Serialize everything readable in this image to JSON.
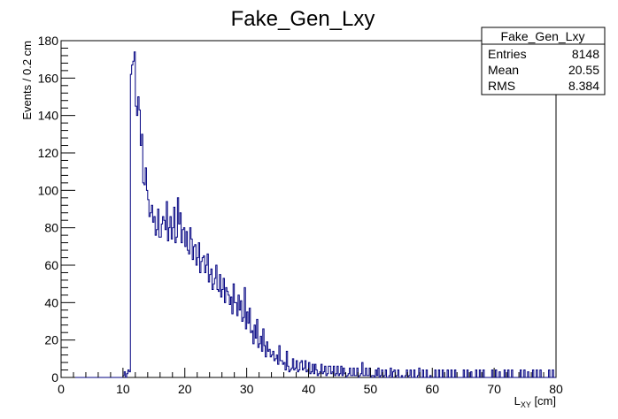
{
  "chart_data": {
    "type": "histogram",
    "title": "Fake_Gen_Lxy",
    "xlabel_main": "L",
    "xlabel_sub": "XY",
    "xlabel_unit": " [cm]",
    "ylabel": "Events / 0.2 cm",
    "xlim": [
      0,
      80
    ],
    "ylim": [
      0,
      180
    ],
    "xticks": [
      "0",
      "10",
      "20",
      "30",
      "40",
      "50",
      "60",
      "70",
      "80"
    ],
    "yticks": [
      "0",
      "20",
      "40",
      "60",
      "80",
      "100",
      "120",
      "140",
      "160",
      "180"
    ],
    "grid": false,
    "line_color": "#000080",
    "bin_width": 0.2,
    "stats": {
      "name": "Fake_Gen_Lxy",
      "entries_label": "Entries",
      "entries_value": "8148",
      "mean_label": "Mean",
      "mean_value": "20.55",
      "rms_label": "RMS",
      "rms_value": "8.384"
    },
    "profile_points": [
      [
        9.8,
        0
      ],
      [
        10.0,
        1
      ],
      [
        10.2,
        3
      ],
      [
        10.4,
        0
      ],
      [
        10.6,
        2
      ],
      [
        10.8,
        4
      ],
      [
        11.0,
        3
      ],
      [
        11.2,
        173
      ],
      [
        11.4,
        170
      ],
      [
        11.6,
        165
      ],
      [
        11.8,
        163
      ],
      [
        12.0,
        150
      ],
      [
        12.2,
        140
      ],
      [
        12.4,
        145
      ],
      [
        12.6,
        130
      ],
      [
        13.0,
        118
      ],
      [
        13.4,
        105
      ],
      [
        13.8,
        90
      ],
      [
        14.2,
        84
      ],
      [
        14.6,
        82
      ],
      [
        15.0,
        83
      ],
      [
        15.4,
        80
      ],
      [
        15.8,
        82
      ],
      [
        16.2,
        79
      ],
      [
        16.6,
        78
      ],
      [
        17.0,
        77
      ],
      [
        17.4,
        80
      ],
      [
        17.8,
        81
      ],
      [
        18.2,
        82
      ],
      [
        18.6,
        78
      ],
      [
        19.0,
        75
      ],
      [
        19.4,
        74
      ],
      [
        19.8,
        72
      ],
      [
        20.2,
        70
      ],
      [
        20.6,
        68
      ],
      [
        21.0,
        67
      ],
      [
        21.4,
        66
      ],
      [
        21.8,
        65
      ],
      [
        22.2,
        63
      ],
      [
        22.6,
        61
      ],
      [
        23.0,
        60
      ],
      [
        23.4,
        58
      ],
      [
        23.8,
        55
      ],
      [
        24.2,
        53
      ],
      [
        24.6,
        51
      ],
      [
        25.0,
        49
      ],
      [
        25.4,
        48
      ],
      [
        25.8,
        46
      ],
      [
        26.2,
        45
      ],
      [
        26.6,
        43
      ],
      [
        27.0,
        41
      ],
      [
        27.4,
        40
      ],
      [
        27.8,
        39
      ],
      [
        28.2,
        37
      ],
      [
        28.6,
        34
      ],
      [
        29.0,
        31
      ],
      [
        29.4,
        29
      ],
      [
        29.8,
        27
      ],
      [
        30.2,
        25
      ],
      [
        30.6,
        23
      ],
      [
        31.0,
        21
      ],
      [
        31.4,
        19
      ],
      [
        31.8,
        17
      ],
      [
        32.2,
        16
      ],
      [
        32.6,
        14
      ],
      [
        33.0,
        13
      ],
      [
        33.4,
        12
      ],
      [
        33.8,
        11
      ],
      [
        34.2,
        10
      ],
      [
        34.6,
        9
      ],
      [
        35.0,
        8
      ],
      [
        35.6,
        7
      ],
      [
        36.2,
        6
      ],
      [
        37.0,
        5
      ],
      [
        38.0,
        4.5
      ],
      [
        39.0,
        4
      ],
      [
        40.0,
        3.5
      ],
      [
        41.0,
        3
      ],
      [
        42.0,
        2.7
      ],
      [
        43.0,
        2.3
      ],
      [
        44.0,
        2
      ],
      [
        45.0,
        1.8
      ],
      [
        46.0,
        1.6
      ],
      [
        47.0,
        1.4
      ],
      [
        48.0,
        1.3
      ],
      [
        49.0,
        1.2
      ],
      [
        50.0,
        1.0
      ],
      [
        52.0,
        0.8
      ],
      [
        54.0,
        0.6
      ],
      [
        56.0,
        0.5
      ],
      [
        58.0,
        0.35
      ],
      [
        60.0,
        0.2
      ],
      [
        62.0,
        0.1
      ],
      [
        64.0,
        0
      ]
    ],
    "spikes": [
      [
        12.2,
        140
      ],
      [
        12.4,
        150
      ],
      [
        12.6,
        143
      ],
      [
        13.0,
        130
      ],
      [
        13.6,
        112
      ],
      [
        13.8,
        100
      ],
      [
        14.0,
        95
      ],
      [
        14.4,
        88
      ],
      [
        14.6,
        92
      ],
      [
        15.0,
        86
      ],
      [
        15.6,
        90
      ],
      [
        16.0,
        75
      ],
      [
        16.6,
        84
      ],
      [
        17.0,
        94
      ],
      [
        17.4,
        80
      ],
      [
        18.2,
        91
      ],
      [
        18.8,
        96
      ],
      [
        19.2,
        88
      ],
      [
        19.4,
        72
      ],
      [
        19.8,
        80
      ],
      [
        20.2,
        78
      ],
      [
        20.4,
        68
      ],
      [
        20.8,
        80
      ],
      [
        21.4,
        70
      ],
      [
        22.2,
        72
      ],
      [
        22.6,
        62
      ],
      [
        23.0,
        65
      ],
      [
        23.6,
        66
      ],
      [
        24.2,
        58
      ],
      [
        25.0,
        60
      ],
      [
        25.4,
        46
      ],
      [
        25.6,
        55
      ],
      [
        26.2,
        53
      ],
      [
        26.6,
        48
      ],
      [
        27.0,
        44
      ],
      [
        27.8,
        50
      ],
      [
        28.2,
        40
      ],
      [
        28.6,
        44
      ],
      [
        29.0,
        41
      ],
      [
        29.6,
        48
      ],
      [
        30.0,
        35
      ],
      [
        30.4,
        37
      ],
      [
        31.2,
        28
      ],
      [
        31.6,
        31
      ],
      [
        32.2,
        22
      ],
      [
        32.6,
        26
      ],
      [
        33.2,
        19
      ],
      [
        33.6,
        15
      ],
      [
        34.2,
        14
      ],
      [
        34.8,
        12
      ],
      [
        35.2,
        17
      ],
      [
        35.6,
        9
      ],
      [
        36.4,
        14
      ],
      [
        37.4,
        10
      ],
      [
        38.8,
        9
      ],
      [
        41.0,
        7
      ],
      [
        43.4,
        6
      ],
      [
        45.6,
        5
      ],
      [
        48.6,
        8
      ],
      [
        50.8,
        4
      ],
      [
        53.6,
        3
      ],
      [
        57.8,
        2
      ]
    ]
  }
}
